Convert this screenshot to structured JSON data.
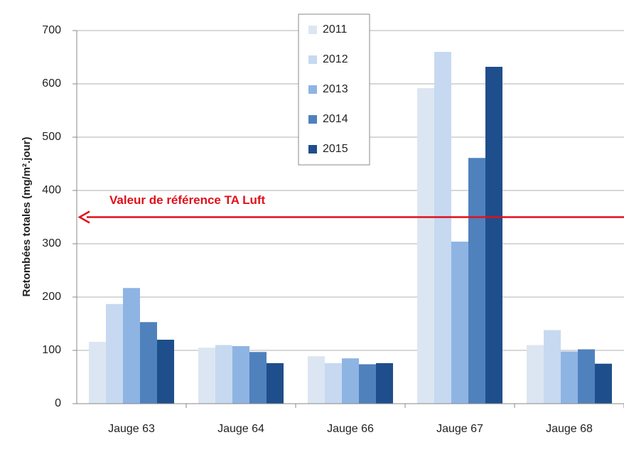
{
  "chart_data": {
    "type": "bar",
    "y_label": "Retombées totales (mg/m².jour)",
    "categories": [
      "Jauge 63",
      "Jauge 64",
      "Jauge 66",
      "Jauge 67",
      "Jauge 68"
    ],
    "series": [
      {
        "name": "2011",
        "color": "#dce6f2",
        "values": [
          116,
          105,
          89,
          592,
          110
        ]
      },
      {
        "name": "2012",
        "color": "#c6d9f1",
        "values": [
          187,
          110,
          76,
          660,
          138
        ]
      },
      {
        "name": "2013",
        "color": "#8eb4e3",
        "values": [
          217,
          108,
          85,
          304,
          98
        ]
      },
      {
        "name": "2014",
        "color": "#4f81bd",
        "values": [
          153,
          97,
          74,
          461,
          102
        ]
      },
      {
        "name": "2015",
        "color": "#1f4e8c",
        "values": [
          120,
          76,
          76,
          632,
          75
        ]
      }
    ],
    "ylim": [
      0,
      700
    ],
    "yticks": [
      0,
      100,
      200,
      300,
      400,
      500,
      600,
      700
    ],
    "grid": true,
    "reference_line": {
      "value": 350,
      "label": "Valeur de référence TA Luft",
      "color": "#e0101a"
    }
  }
}
